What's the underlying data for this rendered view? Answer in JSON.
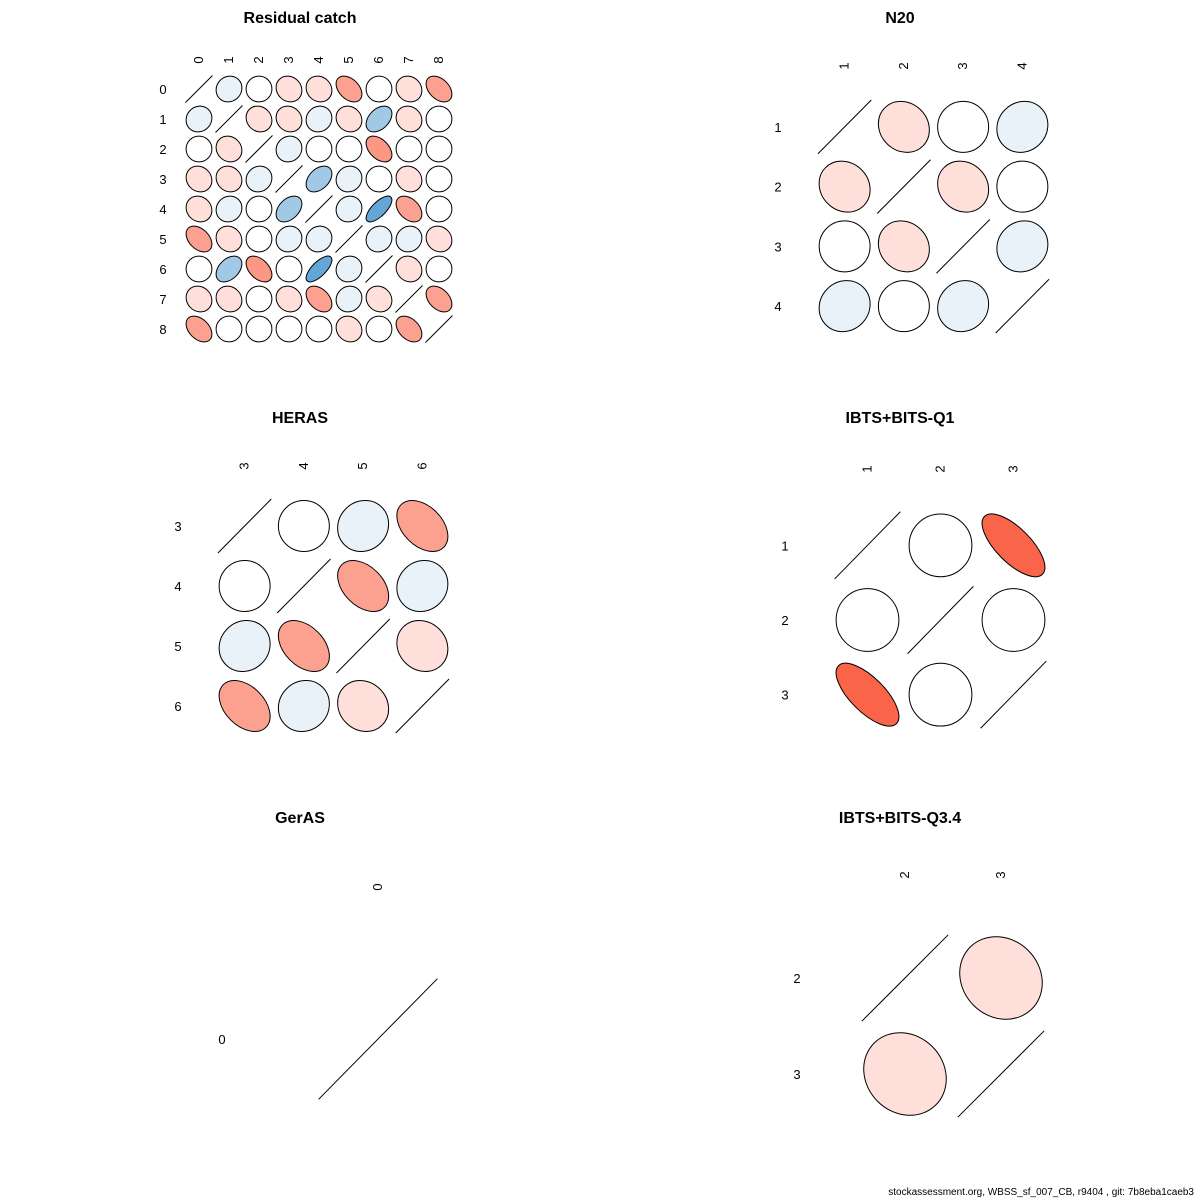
{
  "footer": "stockassessment.org, WBSS_sf_007_CB, r9404 , git: 7b8eba1caeb3",
  "chart_data": [
    {
      "type": "heatmap",
      "style": "correlation-ellipse",
      "title": "Residual catch",
      "labels": [
        "0",
        "1",
        "2",
        "3",
        "4",
        "5",
        "6",
        "7",
        "8"
      ],
      "matrix": [
        [
          1.0,
          -0.08,
          0.0,
          0.12,
          0.12,
          0.4,
          0.0,
          0.12,
          0.4
        ],
        [
          -0.08,
          1.0,
          0.12,
          0.12,
          -0.08,
          0.12,
          -0.4,
          0.12,
          0.0
        ],
        [
          0.0,
          0.12,
          1.0,
          -0.08,
          0.0,
          0.0,
          0.45,
          0.0,
          0.0
        ],
        [
          0.12,
          0.12,
          -0.08,
          1.0,
          -0.4,
          -0.08,
          0.0,
          0.12,
          0.0
        ],
        [
          0.12,
          -0.08,
          0.0,
          -0.4,
          1.0,
          -0.08,
          -0.7,
          0.4,
          0.0
        ],
        [
          0.4,
          0.12,
          0.0,
          -0.08,
          -0.08,
          1.0,
          -0.08,
          -0.08,
          0.12
        ],
        [
          0.0,
          -0.4,
          0.45,
          0.0,
          -0.7,
          -0.08,
          1.0,
          0.12,
          0.0
        ],
        [
          0.12,
          0.12,
          0.0,
          0.12,
          0.4,
          -0.08,
          0.12,
          1.0,
          0.4
        ],
        [
          0.4,
          0.0,
          0.0,
          0.0,
          0.0,
          0.12,
          0.0,
          0.4,
          1.0
        ]
      ]
    },
    {
      "type": "heatmap",
      "style": "correlation-ellipse",
      "title": "N20",
      "labels": [
        "1",
        "2",
        "3",
        "4"
      ],
      "matrix": [
        [
          1.0,
          0.12,
          0.0,
          -0.08
        ],
        [
          0.12,
          1.0,
          0.12,
          0.0
        ],
        [
          0.0,
          0.12,
          1.0,
          -0.08
        ],
        [
          -0.08,
          0.0,
          -0.08,
          1.0
        ]
      ]
    },
    {
      "type": "heatmap",
      "style": "correlation-ellipse",
      "title": "HERAS",
      "labels": [
        "3",
        "4",
        "5",
        "6"
      ],
      "matrix": [
        [
          1.0,
          0.0,
          -0.08,
          0.4
        ],
        [
          0.0,
          1.0,
          0.4,
          -0.08
        ],
        [
          -0.08,
          0.4,
          1.0,
          0.12
        ],
        [
          0.4,
          -0.08,
          0.12,
          1.0
        ]
      ]
    },
    {
      "type": "heatmap",
      "style": "correlation-ellipse",
      "title": "IBTS+BITS-Q1",
      "labels": [
        "1",
        "2",
        "3"
      ],
      "matrix": [
        [
          1.0,
          0.0,
          0.7
        ],
        [
          0.0,
          1.0,
          0.0
        ],
        [
          0.7,
          0.0,
          1.0
        ]
      ]
    },
    {
      "type": "heatmap",
      "style": "correlation-ellipse",
      "title": "GerAS",
      "labels": [
        "0"
      ],
      "matrix": [
        [
          1.0
        ]
      ]
    },
    {
      "type": "heatmap",
      "style": "correlation-ellipse",
      "title": "IBTS+BITS-Q3.4",
      "labels": [
        "2",
        "3"
      ],
      "matrix": [
        [
          1.0,
          0.12
        ],
        [
          0.12,
          1.0
        ]
      ]
    }
  ]
}
